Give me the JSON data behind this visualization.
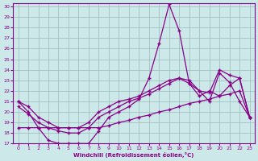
{
  "xlabel": "Windchill (Refroidissement éolien,°C)",
  "background_color": "#cce8e8",
  "line_color": "#880088",
  "grid_color": "#99bbbb",
  "xlim": [
    -0.5,
    23.5
  ],
  "ylim": [
    17,
    30
  ],
  "yticks": [
    17,
    18,
    19,
    20,
    21,
    22,
    23,
    24,
    25,
    26,
    27,
    28,
    29,
    30
  ],
  "xticks": [
    0,
    1,
    2,
    3,
    4,
    5,
    6,
    7,
    8,
    9,
    10,
    11,
    12,
    13,
    14,
    15,
    16,
    17,
    18,
    19,
    20,
    21,
    22,
    23
  ],
  "line1_x": [
    0,
    1,
    2,
    3,
    4,
    5,
    6,
    7,
    8,
    9,
    10,
    11,
    12,
    13,
    14,
    15,
    16,
    17,
    18,
    19,
    20,
    21,
    22,
    23
  ],
  "line1_y": [
    21.0,
    20.0,
    18.5,
    17.3,
    17.0,
    17.0,
    17.0,
    17.0,
    18.2,
    19.5,
    20.0,
    20.5,
    21.2,
    23.2,
    26.5,
    30.2,
    27.7,
    22.7,
    22.0,
    21.0,
    23.7,
    22.8,
    21.0,
    19.5
  ],
  "line2_x": [
    0,
    1,
    2,
    3,
    4,
    5,
    6,
    7,
    8,
    9,
    10,
    11,
    12,
    13,
    14,
    15,
    16,
    17,
    18,
    19,
    20,
    21,
    22,
    23
  ],
  "line2_y": [
    21.0,
    20.5,
    19.5,
    19.0,
    18.5,
    18.5,
    18.5,
    19.0,
    20.0,
    20.5,
    21.0,
    21.2,
    21.5,
    22.0,
    22.5,
    23.0,
    23.2,
    23.0,
    22.0,
    21.8,
    24.0,
    23.5,
    23.2,
    19.5
  ],
  "line3_x": [
    0,
    1,
    2,
    3,
    4,
    5,
    6,
    7,
    8,
    9,
    10,
    11,
    12,
    13,
    14,
    15,
    16,
    17,
    18,
    19,
    20,
    21,
    22,
    23
  ],
  "line3_y": [
    20.5,
    19.8,
    19.0,
    18.5,
    18.2,
    18.0,
    18.0,
    18.5,
    19.5,
    20.0,
    20.5,
    21.0,
    21.3,
    21.7,
    22.2,
    22.7,
    23.2,
    22.7,
    21.5,
    22.0,
    21.5,
    22.5,
    23.2,
    19.5
  ],
  "line4_x": [
    0,
    1,
    2,
    3,
    4,
    5,
    6,
    7,
    8,
    9,
    10,
    11,
    12,
    13,
    14,
    15,
    16,
    17,
    18,
    19,
    20,
    21,
    22,
    23
  ],
  "line4_y": [
    18.5,
    18.5,
    18.5,
    18.5,
    18.5,
    18.5,
    18.5,
    18.5,
    18.5,
    18.7,
    19.0,
    19.2,
    19.5,
    19.7,
    20.0,
    20.2,
    20.5,
    20.8,
    21.0,
    21.2,
    21.5,
    21.7,
    22.0,
    19.5
  ]
}
